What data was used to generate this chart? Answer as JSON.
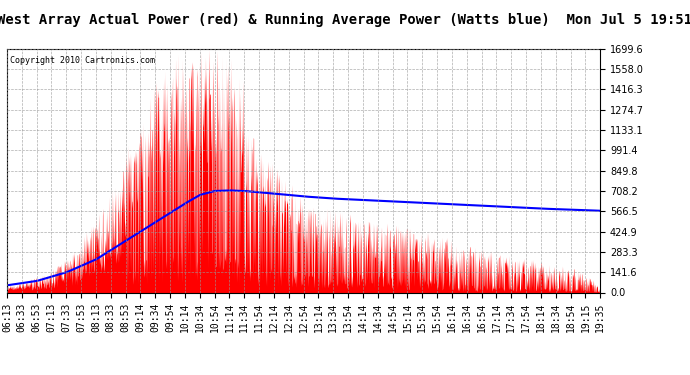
{
  "title": "West Array Actual Power (red) & Running Average Power (Watts blue)  Mon Jul 5 19:51",
  "copyright": "Copyright 2010 Cartronics.com",
  "yticks": [
    0.0,
    141.6,
    283.3,
    424.9,
    566.5,
    708.2,
    849.8,
    991.4,
    1133.1,
    1274.7,
    1416.3,
    1558.0,
    1699.6
  ],
  "ymax": 1699.6,
  "xtick_labels": [
    "06:13",
    "06:33",
    "06:53",
    "07:13",
    "07:33",
    "07:53",
    "08:13",
    "08:33",
    "08:53",
    "09:14",
    "09:34",
    "09:54",
    "10:14",
    "10:34",
    "10:54",
    "11:14",
    "11:34",
    "11:54",
    "12:14",
    "12:34",
    "12:54",
    "13:14",
    "13:34",
    "13:54",
    "14:14",
    "14:34",
    "14:54",
    "15:14",
    "15:34",
    "15:54",
    "16:14",
    "16:34",
    "16:54",
    "17:14",
    "17:34",
    "17:54",
    "18:14",
    "18:34",
    "18:54",
    "19:15",
    "19:35"
  ],
  "bg_color": "#ffffff",
  "plot_bg_color": "#ffffff",
  "grid_color": "#999999",
  "actual_color": "#ff0000",
  "avg_color": "#0000ff",
  "title_fontsize": 10,
  "tick_fontsize": 7,
  "n_xticks": 41
}
